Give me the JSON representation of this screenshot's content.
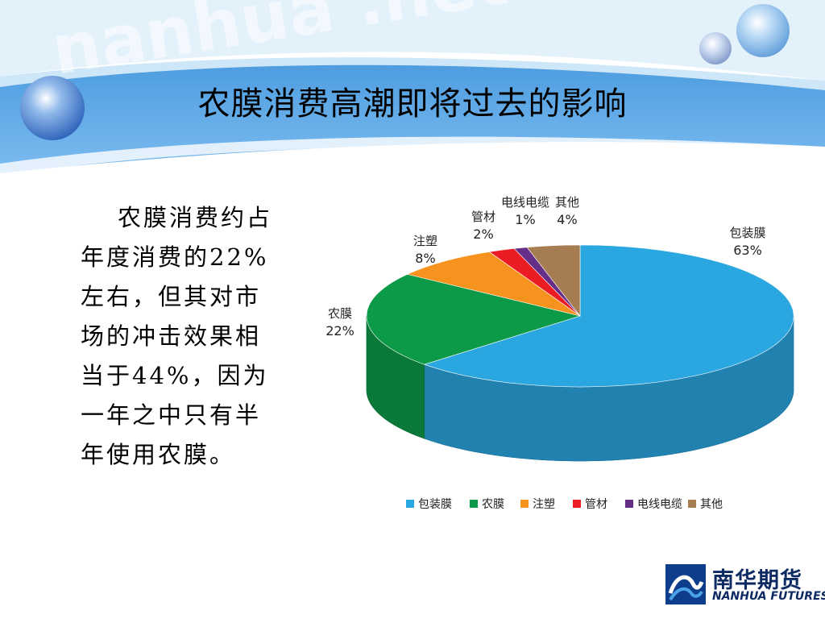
{
  "slide": {
    "title": "农膜消费高潮即将过去的影响",
    "body_text": "农膜消费约占年度消费的22%左右，但其对市场的冲击效果相当于44%，因为一年之中只有半年使用农膜。",
    "watermark": "nanhua .net"
  },
  "logo": {
    "cn": "南华期货",
    "en": "NANHUA FUTURES"
  },
  "colors": {
    "banner_blue": "#5fa7e3",
    "banner_light": "#cde7f8"
  },
  "chart_data": {
    "type": "pie",
    "style": "3d",
    "legend_position": "bottom",
    "categories": [
      "包装膜",
      "农膜",
      "注塑",
      "管材",
      "电线电缆",
      "其他"
    ],
    "values": [
      63,
      22,
      8,
      2,
      1,
      4
    ],
    "data_labels": [
      "63%",
      "22%",
      "8%",
      "2%",
      "1%",
      "4%"
    ],
    "colors": [
      "#2aa6e0",
      "#0d9a48",
      "#f6921e",
      "#ec1c24",
      "#652f87",
      "#a67c52"
    ]
  }
}
